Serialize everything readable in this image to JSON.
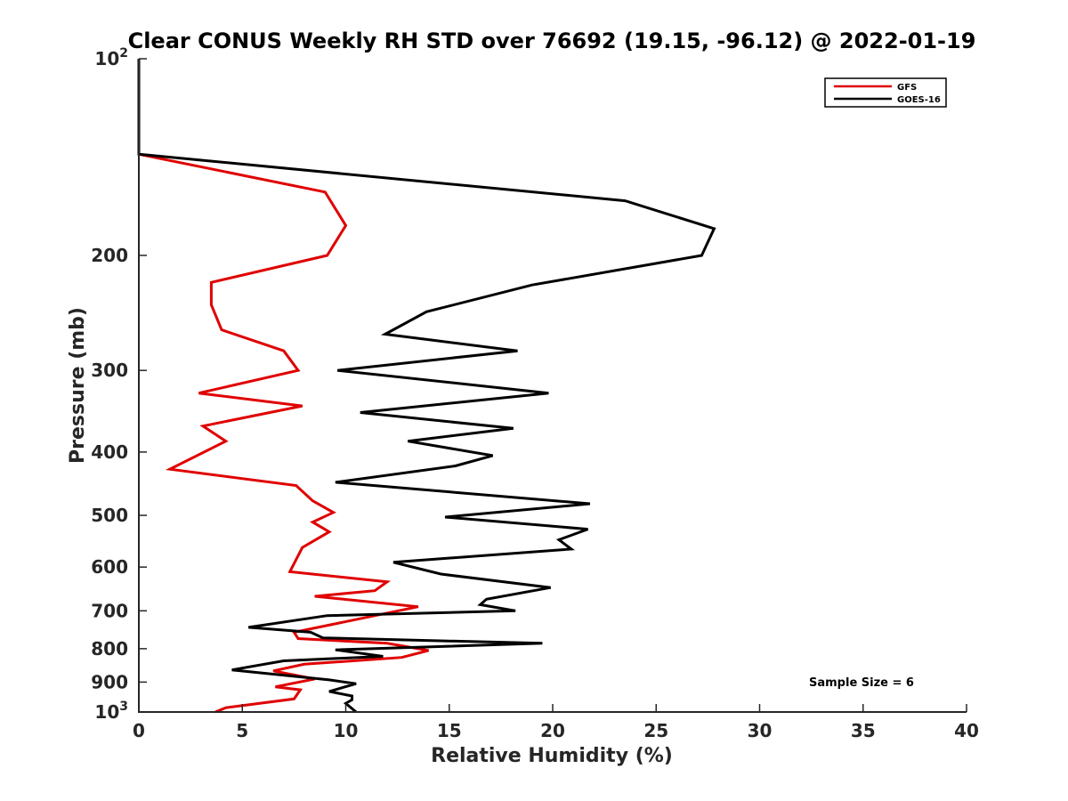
{
  "chart_data": {
    "type": "line",
    "title": "Clear CONUS Weekly RH STD over 76692 (19.15, -96.12) @ 2022-01-19",
    "xlabel": "Relative Humidity (%)",
    "ylabel": "Pressure (mb)",
    "xlim": [
      0,
      40
    ],
    "ylim": [
      100,
      1000
    ],
    "yscale": "log",
    "y_reversed": true,
    "x_ticks": [
      "0",
      "5",
      "10",
      "15",
      "20",
      "25",
      "30",
      "35",
      "40"
    ],
    "y_ticks": [
      {
        "value": 100,
        "base": "10",
        "exp": "2"
      },
      {
        "value": 200,
        "label": "200"
      },
      {
        "value": 300,
        "label": "300"
      },
      {
        "value": 400,
        "label": "400"
      },
      {
        "value": 500,
        "label": "500"
      },
      {
        "value": 600,
        "label": "600"
      },
      {
        "value": 700,
        "label": "700"
      },
      {
        "value": 800,
        "label": "800"
      },
      {
        "value": 900,
        "label": "900"
      },
      {
        "value": 1000,
        "base": "10",
        "exp": "3"
      }
    ],
    "legend_position": "top-right",
    "annotation": "Sample Size = 6",
    "series": [
      {
        "name": "GFS",
        "color": "#e00000",
        "points": [
          [
            0,
            100
          ],
          [
            0,
            140
          ],
          [
            9.0,
            160
          ],
          [
            10.0,
            180
          ],
          [
            9.1,
            200
          ],
          [
            3.5,
            220
          ],
          [
            3.5,
            238
          ],
          [
            4.0,
            260
          ],
          [
            7.0,
            280
          ],
          [
            7.7,
            300
          ],
          [
            2.9,
            325
          ],
          [
            7.9,
            340
          ],
          [
            3.1,
            365
          ],
          [
            4.2,
            385
          ],
          [
            1.5,
            425
          ],
          [
            7.6,
            450
          ],
          [
            8.4,
            475
          ],
          [
            9.4,
            495
          ],
          [
            8.4,
            512
          ],
          [
            9.2,
            530
          ],
          [
            7.9,
            560
          ],
          [
            7.3,
            610
          ],
          [
            12.0,
            632
          ],
          [
            11.4,
            652
          ],
          [
            8.5,
            665
          ],
          [
            13.5,
            690
          ],
          [
            7.5,
            755
          ],
          [
            7.7,
            772
          ],
          [
            12.0,
            785
          ],
          [
            14.0,
            805
          ],
          [
            12.7,
            825
          ],
          [
            8.0,
            845
          ],
          [
            6.5,
            865
          ],
          [
            8.5,
            890
          ],
          [
            6.6,
            915
          ],
          [
            7.8,
            925
          ],
          [
            7.5,
            955
          ],
          [
            4.2,
            985
          ],
          [
            3.7,
            1000
          ]
        ]
      },
      {
        "name": "GOES-16",
        "color": "#000000",
        "points": [
          [
            0,
            100
          ],
          [
            0,
            140
          ],
          [
            23.5,
            165
          ],
          [
            27.8,
            182
          ],
          [
            27.2,
            200
          ],
          [
            19.0,
            222
          ],
          [
            13.9,
            244
          ],
          [
            11.9,
            264
          ],
          [
            18.3,
            280
          ],
          [
            9.6,
            300
          ],
          [
            19.8,
            325
          ],
          [
            10.7,
            348
          ],
          [
            18.1,
            368
          ],
          [
            13.0,
            385
          ],
          [
            17.1,
            405
          ],
          [
            15.3,
            420
          ],
          [
            9.5,
            445
          ],
          [
            21.8,
            480
          ],
          [
            14.8,
            503
          ],
          [
            21.7,
            525
          ],
          [
            20.3,
            545
          ],
          [
            20.9,
            563
          ],
          [
            12.3,
            590
          ],
          [
            14.6,
            615
          ],
          [
            19.9,
            645
          ],
          [
            16.8,
            672
          ],
          [
            16.5,
            685
          ],
          [
            18.2,
            700
          ],
          [
            9.1,
            712
          ],
          [
            5.3,
            742
          ],
          [
            8.3,
            755
          ],
          [
            8.9,
            770
          ],
          [
            19.5,
            785
          ],
          [
            9.5,
            803
          ],
          [
            11.8,
            822
          ],
          [
            7.0,
            835
          ],
          [
            4.5,
            862
          ],
          [
            9.2,
            893
          ],
          [
            10.5,
            905
          ],
          [
            9.2,
            930
          ],
          [
            10.3,
            945
          ],
          [
            10.3,
            958
          ],
          [
            10.0,
            970
          ],
          [
            10.5,
            1000
          ]
        ]
      }
    ]
  }
}
